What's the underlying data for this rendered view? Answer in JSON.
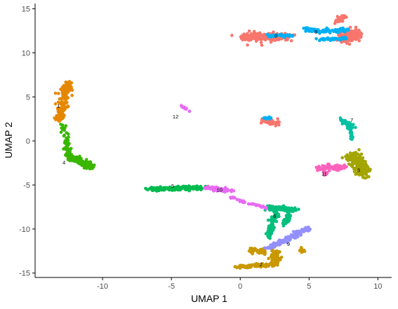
{
  "chart_data": {
    "type": "scatter",
    "title": "",
    "xlabel": "UMAP 1",
    "ylabel": "UMAP 2",
    "xlim": [
      -14.9,
      11.0
    ],
    "ylim": [
      -15.5,
      15.6
    ],
    "xticks": [
      -10,
      -5,
      0,
      5,
      10
    ],
    "yticks": [
      -15,
      -10,
      -5,
      0,
      5,
      10,
      15
    ],
    "grid": false,
    "legend": "none",
    "clusters": [
      {
        "label": "0",
        "color": "#F8766D",
        "label_pos": [
          2.6,
          12.0
        ],
        "blobs": [
          {
            "type": "band",
            "from": [
              0.3,
              11.8
            ],
            "to": [
              3.3,
              11.8
            ],
            "sx": 0.7,
            "sy": 0.45,
            "n": 220
          },
          {
            "type": "band",
            "from": [
              7.3,
              11.6
            ],
            "to": [
              8.4,
              12.2
            ],
            "sx": 0.55,
            "sy": 0.65,
            "n": 170
          },
          {
            "type": "band",
            "from": [
              7.0,
              13.6
            ],
            "to": [
              7.6,
              14.1
            ],
            "sx": 0.25,
            "sy": 0.35,
            "n": 40
          },
          {
            "type": "band",
            "from": [
              1.6,
              2.4
            ],
            "to": [
              2.6,
              2.0
            ],
            "sx": 0.45,
            "sy": 0.35,
            "n": 55
          }
        ]
      },
      {
        "label": "1",
        "color": "#E58700",
        "label_pos": [
          -13.2,
          4.0
        ],
        "blobs": [
          {
            "type": "band",
            "from": [
              -12.5,
              6.6
            ],
            "to": [
              -13.2,
              2.2
            ],
            "sx": 0.35,
            "sy": 0.3,
            "n": 150
          }
        ]
      },
      {
        "label": "2",
        "color": "#C99800",
        "label_pos": [
          1.5,
          -14.0
        ],
        "blobs": [
          {
            "type": "band",
            "from": [
              -0.2,
              -14.3
            ],
            "to": [
              2.6,
              -14.0
            ],
            "sx": 0.3,
            "sy": 0.18,
            "n": 90
          },
          {
            "type": "band",
            "from": [
              2.6,
              -14.0
            ],
            "to": [
              2.6,
              -12.5
            ],
            "sx": 0.35,
            "sy": 0.3,
            "n": 60
          },
          {
            "type": "band",
            "from": [
              0.8,
              -12.4
            ],
            "to": [
              1.8,
              -12.6
            ],
            "sx": 0.3,
            "sy": 0.35,
            "n": 50
          },
          {
            "type": "band",
            "from": [
              4.3,
              -12.1
            ],
            "to": [
              4.6,
              -12.7
            ],
            "sx": 0.2,
            "sy": 0.2,
            "n": 15
          }
        ]
      },
      {
        "label": "3",
        "color": "#A3A500",
        "label_pos": [
          8.6,
          -3.3
        ],
        "blobs": [
          {
            "type": "band",
            "from": [
              8.1,
              -1.5
            ],
            "to": [
              9.0,
              -3.8
            ],
            "sx": 0.55,
            "sy": 0.5,
            "n": 230
          }
        ]
      },
      {
        "label": "4",
        "color": "#39B600",
        "label_pos": [
          -12.8,
          -2.4
        ],
        "blobs": [
          {
            "type": "band",
            "from": [
              -12.9,
              1.8
            ],
            "to": [
              -12.4,
              -1.8
            ],
            "sx": 0.25,
            "sy": 0.3,
            "n": 50
          },
          {
            "type": "band",
            "from": [
              -12.6,
              -1.5
            ],
            "to": [
              -10.8,
              -3.0
            ],
            "sx": 0.35,
            "sy": 0.25,
            "n": 190
          }
        ]
      },
      {
        "label": "5",
        "color": "#00BB4E",
        "label_pos": [
          -4.9,
          -5.1
        ],
        "blobs": [
          {
            "type": "band",
            "from": [
              -6.6,
              -5.5
            ],
            "to": [
              -2.8,
              -5.3
            ],
            "sx": 0.35,
            "sy": 0.2,
            "n": 230
          }
        ]
      },
      {
        "label": "6",
        "color": "#00BF7D",
        "label_pos": [
          2.5,
          -8.5
        ],
        "blobs": [
          {
            "type": "band",
            "from": [
              2.0,
              -7.6
            ],
            "to": [
              4.0,
              -7.8
            ],
            "sx": 0.3,
            "sy": 0.25,
            "n": 100
          },
          {
            "type": "band",
            "from": [
              2.6,
              -8.0
            ],
            "to": [
              2.0,
              -10.9
            ],
            "sx": 0.25,
            "sy": 0.3,
            "n": 70
          },
          {
            "type": "band",
            "from": [
              3.5,
              -8.0
            ],
            "to": [
              3.3,
              -9.5
            ],
            "sx": 0.2,
            "sy": 0.3,
            "n": 30
          }
        ]
      },
      {
        "label": "7",
        "color": "#00C1A3",
        "label_pos": [
          8.1,
          2.4
        ],
        "blobs": [
          {
            "type": "band",
            "from": [
              7.3,
              2.4
            ],
            "to": [
              8.1,
              1.6
            ],
            "sx": 0.25,
            "sy": 0.3,
            "n": 50
          },
          {
            "type": "band",
            "from": [
              8.0,
              1.4
            ],
            "to": [
              8.1,
              0.2
            ],
            "sx": 0.12,
            "sy": 0.2,
            "n": 20
          }
        ]
      },
      {
        "label": "8",
        "color": "#00B0F6",
        "label_pos": [
          5.5,
          12.4
        ],
        "blobs": [
          {
            "type": "band",
            "from": [
              4.7,
              12.6
            ],
            "to": [
              7.9,
              12.5
            ],
            "sx": 0.4,
            "sy": 0.25,
            "n": 80
          },
          {
            "type": "band",
            "from": [
              5.6,
              11.5
            ],
            "to": [
              7.8,
              11.6
            ],
            "sx": 0.3,
            "sy": 0.18,
            "n": 45
          },
          {
            "type": "band",
            "from": [
              1.8,
              12.0
            ],
            "to": [
              3.8,
              11.9
            ],
            "sx": 0.25,
            "sy": 0.12,
            "n": 45
          },
          {
            "type": "band",
            "from": [
              1.6,
              2.5
            ],
            "to": [
              2.2,
              2.6
            ],
            "sx": 0.15,
            "sy": 0.15,
            "n": 12
          }
        ]
      },
      {
        "label": "9",
        "color": "#9590FF",
        "label_pos": [
          3.5,
          -11.7
        ],
        "blobs": [
          {
            "type": "band",
            "from": [
              5.1,
              -9.8
            ],
            "to": [
              2.6,
              -11.8
            ],
            "sx": 0.35,
            "sy": 0.25,
            "n": 110
          },
          {
            "type": "band",
            "from": [
              2.5,
              -12.0
            ],
            "to": [
              1.9,
              -12.2
            ],
            "sx": 0.2,
            "sy": 0.15,
            "n": 20
          }
        ]
      },
      {
        "label": "10",
        "color": "#E76BF3",
        "label_pos": [
          -1.5,
          -5.5
        ],
        "blobs": [
          {
            "type": "band",
            "from": [
              -2.5,
              -5.3
            ],
            "to": [
              -0.6,
              -5.7
            ],
            "sx": 0.3,
            "sy": 0.22,
            "n": 70
          },
          {
            "type": "band",
            "from": [
              -0.7,
              -6.3
            ],
            "to": [
              0.3,
              -7.0
            ],
            "sx": 0.15,
            "sy": 0.1,
            "n": 20
          },
          {
            "type": "band",
            "from": [
              0.7,
              -7.1
            ],
            "to": [
              1.9,
              -7.6
            ],
            "sx": 0.15,
            "sy": 0.1,
            "n": 25
          },
          {
            "type": "band",
            "from": [
              -4.3,
              4.0
            ],
            "to": [
              -3.7,
              3.4
            ],
            "sx": 0.08,
            "sy": 0.08,
            "n": 18
          }
        ]
      },
      {
        "label": "11",
        "color": "#FF62BC",
        "label_pos": [
          6.1,
          -3.7
        ],
        "blobs": [
          {
            "type": "band",
            "from": [
              5.7,
              -3.1
            ],
            "to": [
              7.6,
              -3.0
            ],
            "sx": 0.3,
            "sy": 0.3,
            "n": 80
          },
          {
            "type": "band",
            "from": [
              6.3,
              -3.6
            ],
            "to": [
              6.1,
              -4.0
            ],
            "sx": 0.1,
            "sy": 0.15,
            "n": 10
          }
        ]
      }
    ],
    "text_labels": [
      {
        "text": "12",
        "pos": [
          -4.7,
          2.8
        ]
      }
    ]
  }
}
